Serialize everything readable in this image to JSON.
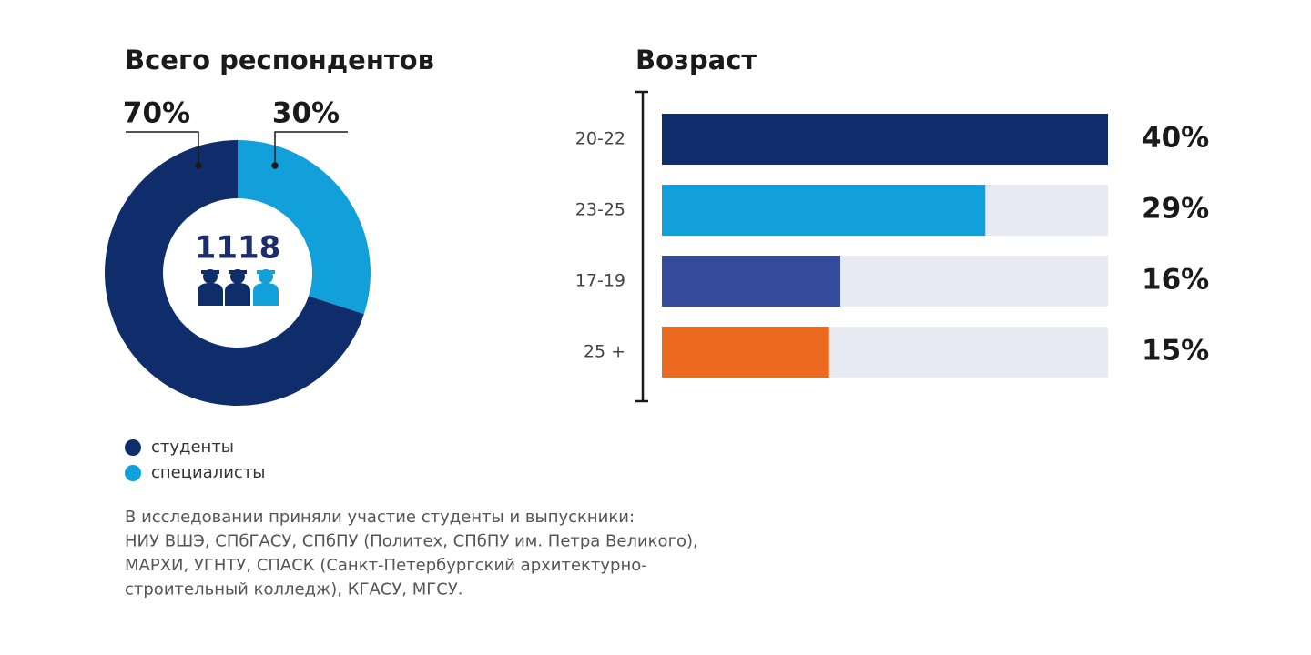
{
  "chart_data": [
    {
      "type": "pie",
      "title": "Всего респондентов",
      "total": 1118,
      "categories": [
        "студенты",
        "специалисты"
      ],
      "values": [
        70,
        30
      ],
      "value_labels": [
        "70%",
        "30%"
      ],
      "colors": [
        "#0f2d6b",
        "#11a0d9"
      ],
      "note": [
        "В исследовании приняли участие студенты и выпускники:",
        "НИУ ВШЭ, СПбГАСУ, СПбПУ (Политех, СПбПУ им. Петра Великого),",
        "МАРХИ, УГНТУ, СПАСК (Санкт-Петербургский архитектурно-",
        "строительный колледж), КГАСУ, МГСУ."
      ]
    },
    {
      "type": "hbar",
      "title": "Возраст",
      "categories": [
        "20-22",
        "23-25",
        "17-19",
        "25 +"
      ],
      "values": [
        40,
        29,
        16,
        15
      ],
      "value_labels": [
        "40%",
        "29%",
        "16%",
        "15%"
      ],
      "colors": [
        "#0f2d6b",
        "#11a0d9",
        "#364a9b",
        "#eb6a1f"
      ],
      "xlim": [
        0,
        40
      ]
    }
  ]
}
